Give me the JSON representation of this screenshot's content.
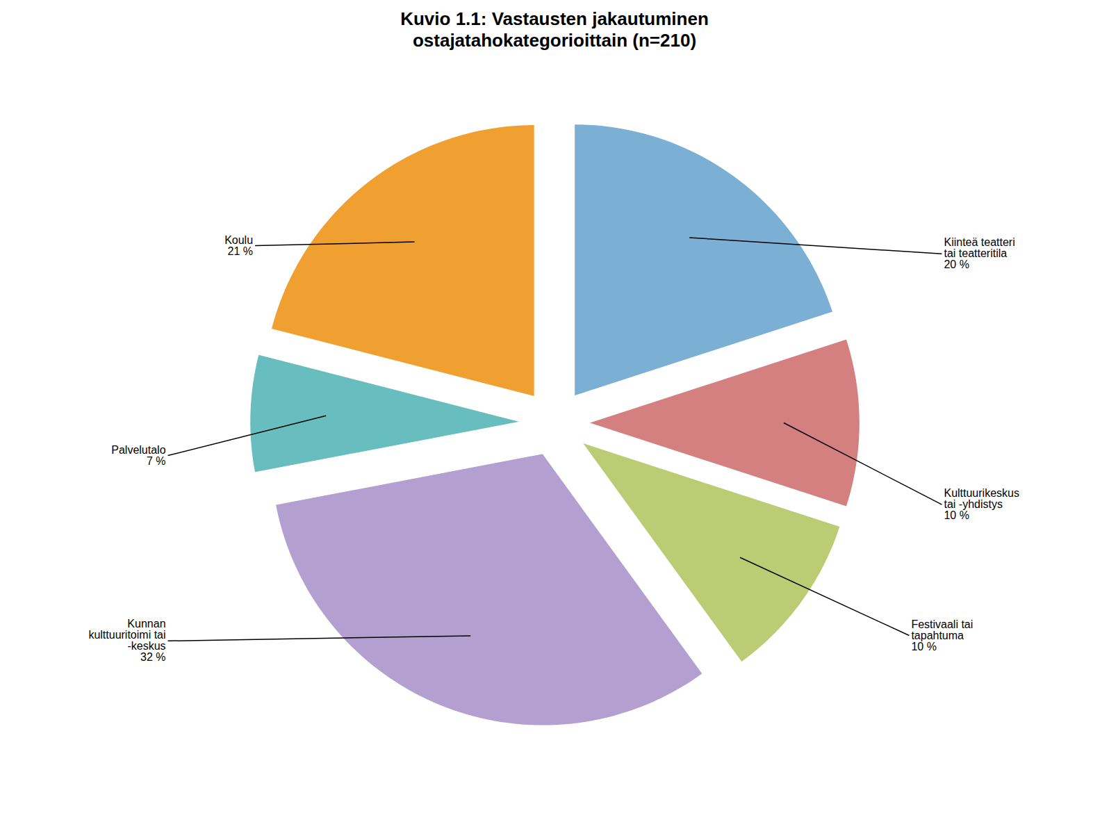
{
  "chart_data": {
    "type": "pie",
    "title": "Kuvio 1.1: Vastausten jakautuminen\nostajatahokategorioittain (n=210)",
    "categories": [
      "Kiinteä teatteri\ntai teatteritila",
      "Kulttuurikeskus\ntai -yhdistys",
      "Festivaali tai\ntapahtuma",
      "Kunnan\nkulttuuritoimi tai\n-keskus",
      "Palvelutalo",
      "Koulu"
    ],
    "values": [
      20,
      10,
      10,
      32,
      7,
      21
    ],
    "value_labels": [
      "20 %",
      "10 %",
      "10 %",
      "32 %",
      "7 %",
      "21 %"
    ],
    "colors": [
      "#7BAFD4",
      "#D48080",
      "#BBCC74",
      "#B4A0D0",
      "#68BEBE",
      "#F0A030"
    ],
    "data_labels": true
  }
}
